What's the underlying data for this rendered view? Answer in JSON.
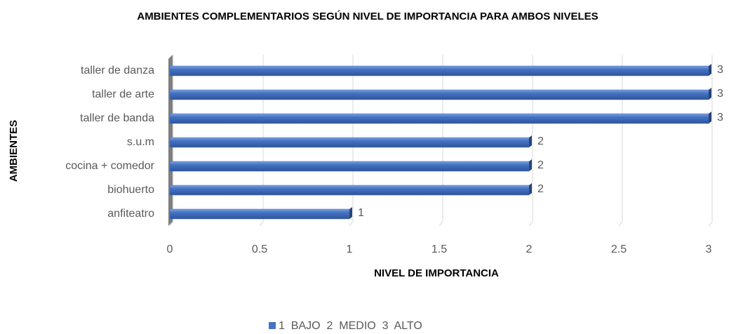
{
  "chart_data": {
    "type": "bar",
    "orientation": "horizontal",
    "title": "AMBIENTES COMPLEMENTARIOS SEGÚN NIVEL DE IMPORTANCIA PARA AMBOS NIVELES",
    "x_label": "NIVEL DE IMPORTANCIA",
    "y_label": "AMBIENTES",
    "categories": [
      "taller de danza",
      "taller de arte",
      "taller de banda",
      "s.u.m",
      "cocina + comedor",
      "biohuerto",
      "anfiteatro"
    ],
    "series": [
      {
        "name": "1  BAJO  2  MEDIO  3  ALTO",
        "color": "#4472c4",
        "values": [
          3,
          3,
          3,
          2,
          2,
          2,
          1
        ]
      }
    ],
    "xlim": [
      0,
      3
    ],
    "xticks": [
      0,
      0.5,
      1,
      1.5,
      2,
      2.5,
      3
    ],
    "grid": true,
    "legend": "bottom"
  }
}
